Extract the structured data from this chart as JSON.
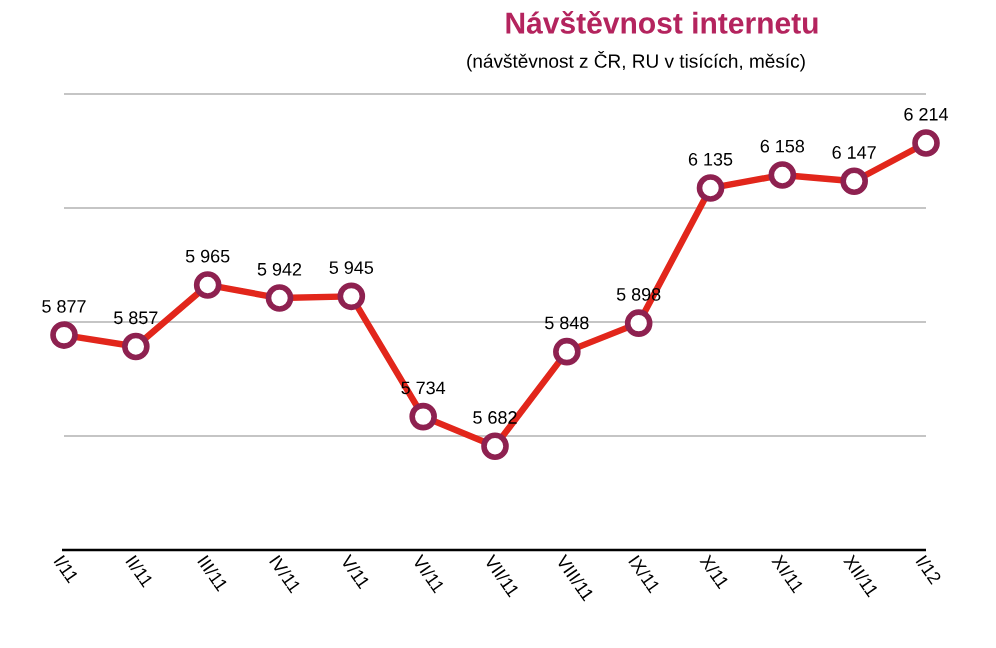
{
  "chart_data": {
    "type": "line",
    "title": "Návštěvnost internetu",
    "subtitle": "(návštěvnost z ČR, RU v tisících, měsíc)",
    "categories": [
      "I/11",
      "II/11",
      "III/11",
      "IV/11",
      "V/11",
      "VI/11",
      "VII/11",
      "VIII/11",
      "IX/11",
      "X/11",
      "XI/11",
      "XII/11",
      "I/12"
    ],
    "series": [
      {
        "color": "#e2261b",
        "values": [
          5877,
          5857,
          5965,
          5942,
          5945,
          5734,
          5682,
          5848,
          5898,
          6135,
          6158,
          6147,
          6214
        ],
        "value_labels": [
          "5 877",
          "5 857",
          "5 965",
          "5 942",
          "5 945",
          "5 734",
          "5 682",
          "5 848",
          "5 898",
          "6 135",
          "6 158",
          "6 147",
          "6 214"
        ]
      }
    ],
    "ylim": [
      5500,
      6300
    ],
    "yticks": [
      {
        "value": 5500,
        "label": null
      },
      {
        "value": 5700,
        "label": null
      },
      {
        "value": 5900,
        "label": null
      },
      {
        "value": 6100,
        "label": null
      },
      {
        "value": 6300,
        "label": null
      }
    ],
    "grid": "y",
    "tick_labels": "x",
    "marker": "circle",
    "line_style": "solid"
  }
}
